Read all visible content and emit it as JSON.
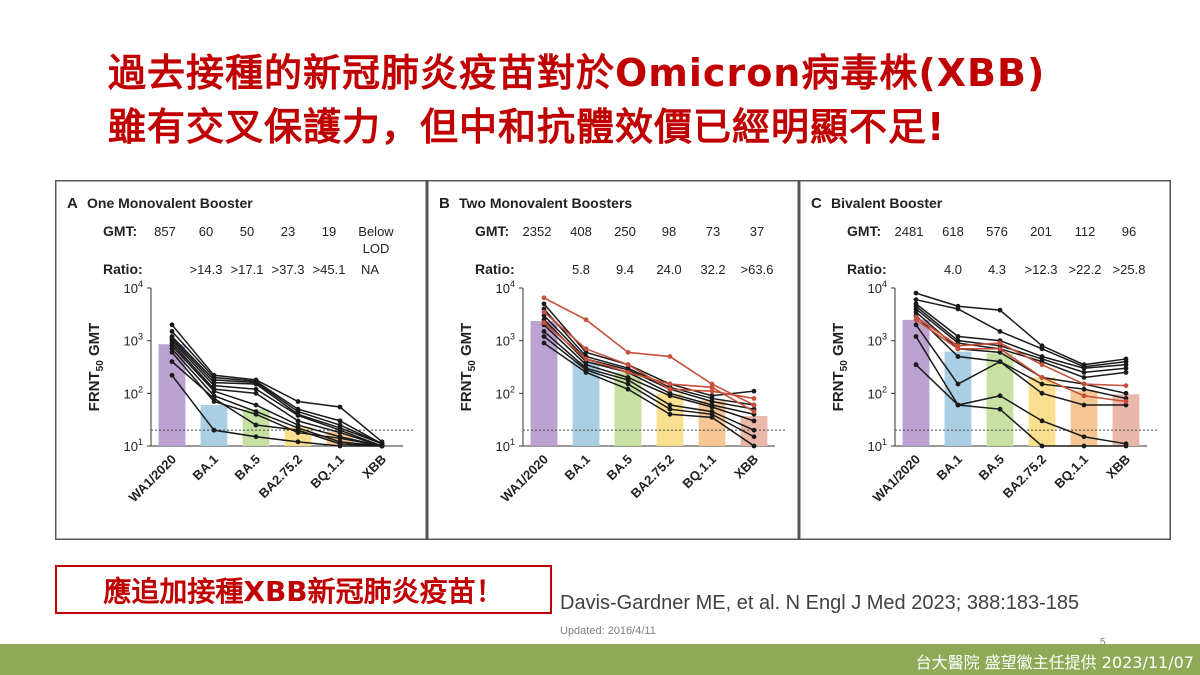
{
  "slide": {
    "title_line1": "過去接種的新冠肺炎疫苗對於Omicron病毒株(XBB)",
    "title_line2": "雖有交叉保護力，但中和抗體效價已經明顯不足!",
    "callout": "應追加接種XBB新冠肺炎疫苗！",
    "citation": "Davis-Gardner ME, et al. N Engl J Med 2023; 388:183-185",
    "updated": "Updated: 2016/4/11",
    "page_number": "5",
    "footer_credit": "台大醫院 盛望徽主任提供  2023/11/07"
  },
  "chart_data": [
    {
      "type": "bar",
      "panel_letter": "A",
      "title": "One Monovalent Booster",
      "ylabel": "FRNT50 GMT",
      "y_scale": "log",
      "ylim": [
        10,
        10000
      ],
      "yticks": [
        "10^1",
        "10^2",
        "10^3",
        "10^4"
      ],
      "lod": 20,
      "categories": [
        "WA1/2020",
        "BA.1",
        "BA.5",
        "BA2.75.2",
        "BQ.1.1",
        "XBB"
      ],
      "gmt_label": "GMT:",
      "gmt": [
        "857",
        "60",
        "50",
        "23",
        "19",
        "Below LOD"
      ],
      "ratio_label": "Ratio:",
      "ratio": [
        "",
        ">14.3",
        ">17.1",
        ">37.3",
        ">45.1",
        "NA"
      ],
      "values": [
        857,
        60,
        50,
        23,
        19,
        10
      ],
      "bar_colors": [
        "#b99ccd",
        "#a5cbe2",
        "#c4df9e",
        "#f9dd8a",
        "#f6c48e",
        "#e8b4a6"
      ],
      "lines": [
        [
          2000,
          220,
          180,
          70,
          55,
          12
        ],
        [
          1500,
          200,
          170,
          50,
          30,
          11
        ],
        [
          1200,
          180,
          160,
          45,
          25,
          11
        ],
        [
          1100,
          160,
          150,
          40,
          22,
          11
        ],
        [
          1000,
          140,
          120,
          38,
          20,
          10
        ],
        [
          900,
          120,
          100,
          30,
          18,
          10
        ],
        [
          800,
          110,
          60,
          25,
          15,
          10
        ],
        [
          700,
          90,
          45,
          22,
          12,
          10
        ],
        [
          400,
          80,
          25,
          20,
          11,
          10
        ],
        [
          220,
          20,
          15,
          12,
          10,
          10
        ],
        [
          600,
          70,
          40,
          18,
          14,
          10
        ]
      ],
      "red_lines": []
    },
    {
      "type": "bar",
      "panel_letter": "B",
      "title": "Two Monovalent Boosters",
      "ylabel": "FRNT50 GMT",
      "y_scale": "log",
      "ylim": [
        10,
        10000
      ],
      "yticks": [
        "10^1",
        "10^2",
        "10^3",
        "10^4"
      ],
      "lod": 20,
      "categories": [
        "WA1/2020",
        "BA.1",
        "BA.5",
        "BA2.75.2",
        "BQ.1.1",
        "XBB"
      ],
      "gmt_label": "GMT:",
      "gmt": [
        "2352",
        "408",
        "250",
        "98",
        "73",
        "37"
      ],
      "ratio_label": "Ratio:",
      "ratio": [
        "",
        "5.8",
        "9.4",
        "24.0",
        "32.2",
        ">63.6"
      ],
      "values": [
        2352,
        408,
        250,
        98,
        73,
        37
      ],
      "bar_colors": [
        "#b99ccd",
        "#a5cbe2",
        "#c4df9e",
        "#f9dd8a",
        "#f6c48e",
        "#e8b4a6"
      ],
      "lines": [
        [
          5000,
          600,
          350,
          150,
          90,
          110
        ],
        [
          4000,
          500,
          300,
          130,
          80,
          60
        ],
        [
          3000,
          450,
          280,
          120,
          70,
          50
        ],
        [
          2500,
          400,
          250,
          100,
          60,
          40
        ],
        [
          2000,
          350,
          200,
          90,
          55,
          30
        ],
        [
          1500,
          300,
          180,
          60,
          45,
          20
        ],
        [
          1200,
          280,
          150,
          50,
          40,
          15
        ],
        [
          900,
          250,
          120,
          40,
          35,
          10
        ]
      ],
      "red_lines": [
        [
          6500,
          2500,
          600,
          500,
          150,
          60
        ],
        [
          3500,
          700,
          350,
          120,
          110,
          80
        ],
        [
          2200,
          450,
          250,
          150,
          130,
          45
        ]
      ]
    },
    {
      "type": "bar",
      "panel_letter": "C",
      "title": "Bivalent Booster",
      "ylabel": "FRNT50 GMT",
      "y_scale": "log",
      "ylim": [
        10,
        10000
      ],
      "yticks": [
        "10^1",
        "10^2",
        "10^3",
        "10^4"
      ],
      "lod": 20,
      "categories": [
        "WA1/2020",
        "BA.1",
        "BA.5",
        "BA2.75.2",
        "BQ.1.1",
        "XBB"
      ],
      "gmt_label": "GMT:",
      "gmt": [
        "2481",
        "618",
        "576",
        "201",
        "112",
        "96"
      ],
      "ratio_label": "Ratio:",
      "ratio": [
        "",
        "4.0",
        "4.3",
        ">12.3",
        ">22.2",
        ">25.8"
      ],
      "values": [
        2481,
        618,
        576,
        201,
        112,
        96
      ],
      "bar_colors": [
        "#b99ccd",
        "#a5cbe2",
        "#c4df9e",
        "#f9dd8a",
        "#f6c48e",
        "#e8b4a6"
      ],
      "lines": [
        [
          8000,
          4500,
          3800,
          800,
          350,
          450
        ],
        [
          6000,
          4000,
          1500,
          700,
          320,
          400
        ],
        [
          5000,
          1200,
          1000,
          500,
          300,
          350
        ],
        [
          4500,
          1000,
          800,
          450,
          250,
          300
        ],
        [
          4000,
          900,
          700,
          400,
          200,
          250
        ],
        [
          3500,
          700,
          600,
          200,
          150,
          100
        ],
        [
          3000,
          500,
          400,
          150,
          120,
          80
        ],
        [
          2000,
          150,
          400,
          100,
          60,
          60
        ],
        [
          1200,
          60,
          90,
          30,
          15,
          11
        ],
        [
          350,
          60,
          50,
          10,
          10,
          10
        ]
      ],
      "red_lines": [
        [
          2800,
          800,
          900,
          350,
          150,
          140
        ],
        [
          2500,
          700,
          700,
          200,
          90,
          70
        ]
      ]
    }
  ]
}
